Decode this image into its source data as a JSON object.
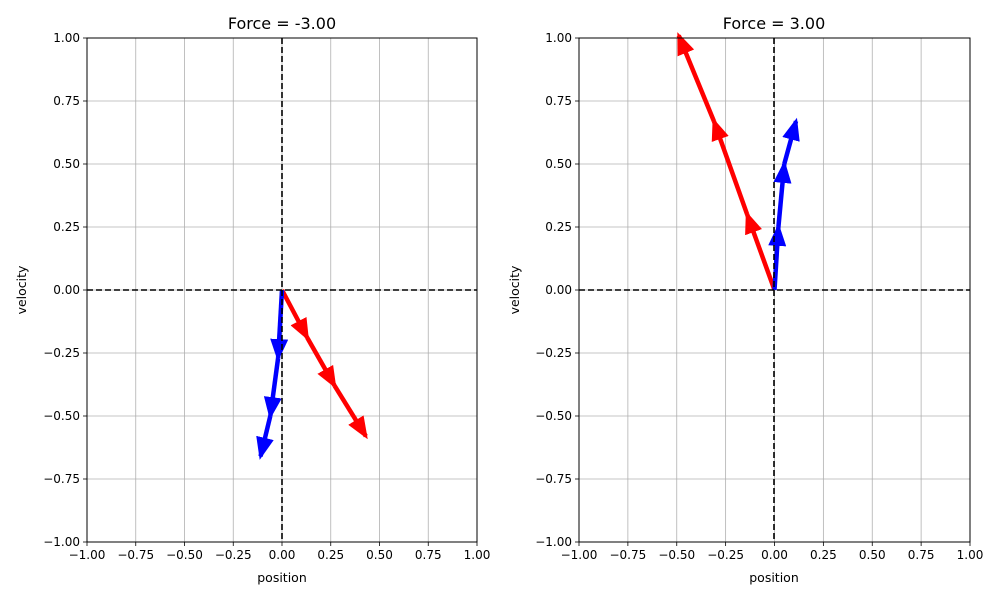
{
  "chart_data": [
    {
      "type": "quiver",
      "title": "Force = -3.00",
      "xlabel": "position",
      "ylabel": "velocity",
      "xlim": [
        -1,
        1
      ],
      "ylim": [
        -1,
        1
      ],
      "xticks": [
        "−1.00",
        "−0.75",
        "−0.50",
        "−0.25",
        "0.00",
        "0.25",
        "0.50",
        "0.75",
        "1.00"
      ],
      "yticks": [
        "−1.00",
        "−0.75",
        "−0.50",
        "−0.25",
        "0.00",
        "0.25",
        "0.50",
        "0.75",
        "1.00"
      ],
      "grid": true,
      "series": [
        {
          "color": "#ff0000",
          "arrows": [
            {
              "x0": 0.0,
              "y0": 0.0,
              "x1": 0.13,
              "y1": -0.19
            },
            {
              "x0": 0.13,
              "y0": -0.19,
              "x1": 0.27,
              "y1": -0.38
            },
            {
              "x0": 0.27,
              "y0": -0.38,
              "x1": 0.43,
              "y1": -0.58
            }
          ]
        },
        {
          "color": "#0000ff",
          "arrows": [
            {
              "x0": 0.0,
              "y0": 0.0,
              "x1": -0.02,
              "y1": -0.27
            },
            {
              "x0": -0.02,
              "y0": -0.27,
              "x1": -0.06,
              "y1": -0.5
            },
            {
              "x0": -0.06,
              "y0": -0.5,
              "x1": -0.11,
              "y1": -0.66
            }
          ]
        }
      ]
    },
    {
      "type": "quiver",
      "title": "Force = 3.00",
      "xlabel": "position",
      "ylabel": "velocity",
      "xlim": [
        -1,
        1
      ],
      "ylim": [
        -1,
        1
      ],
      "xticks": [
        "−1.00",
        "−0.75",
        "−0.50",
        "−0.25",
        "0.00",
        "0.25",
        "0.50",
        "0.75",
        "1.00"
      ],
      "yticks": [
        "−1.00",
        "−0.75",
        "−0.50",
        "−0.25",
        "0.00",
        "0.25",
        "0.50",
        "0.75",
        "1.00"
      ],
      "grid": true,
      "series": [
        {
          "color": "#ff0000",
          "arrows": [
            {
              "x0": 0.0,
              "y0": 0.0,
              "x1": -0.14,
              "y1": 0.3
            },
            {
              "x0": -0.14,
              "y0": 0.3,
              "x1": -0.31,
              "y1": 0.67
            },
            {
              "x0": -0.31,
              "y0": 0.67,
              "x1": -0.49,
              "y1": 1.01
            }
          ]
        },
        {
          "color": "#0000ff",
          "arrows": [
            {
              "x0": 0.0,
              "y0": 0.0,
              "x1": 0.02,
              "y1": 0.25
            },
            {
              "x0": 0.02,
              "y0": 0.25,
              "x1": 0.05,
              "y1": 0.5
            },
            {
              "x0": 0.05,
              "y0": 0.5,
              "x1": 0.11,
              "y1": 0.67
            }
          ]
        }
      ]
    }
  ]
}
